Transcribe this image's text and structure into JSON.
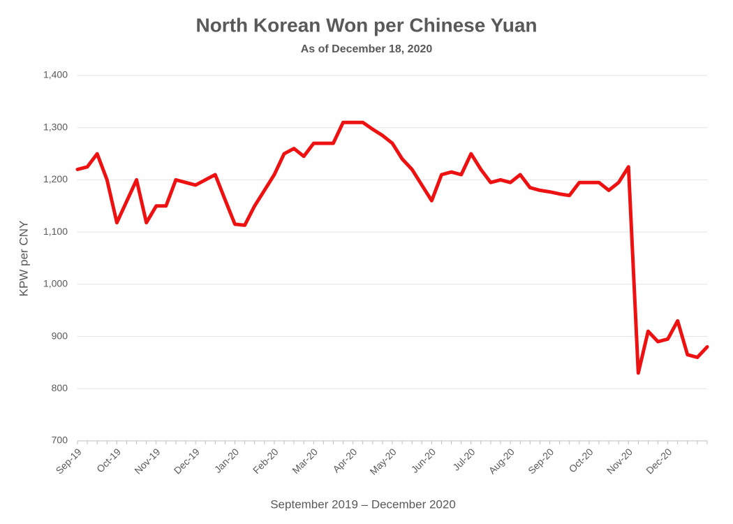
{
  "chart_data": {
    "type": "line",
    "title": "North Korean Won per Chinese Yuan",
    "subtitle": "As of December 18, 2020",
    "y_label": "KPW per CNY",
    "x_label": "September 2019 – December 2020",
    "categories": [
      "Sep-19",
      null,
      null,
      null,
      "Oct-19",
      null,
      null,
      null,
      "Nov-19",
      null,
      null,
      null,
      "Dec-19",
      null,
      null,
      null,
      "Jan-20",
      null,
      null,
      null,
      "Feb-20",
      null,
      null,
      null,
      "Mar-20",
      null,
      null,
      null,
      "Apr-20",
      null,
      null,
      null,
      "May-20",
      null,
      null,
      null,
      "Jun-20",
      null,
      null,
      null,
      "Jul-20",
      null,
      null,
      null,
      "Aug-20",
      null,
      null,
      null,
      "Sep-20",
      null,
      null,
      null,
      "Oct-20",
      null,
      null,
      null,
      "Nov-20",
      null,
      null,
      null,
      "Dec-20",
      null,
      null,
      null,
      null
    ],
    "values": [
      1220,
      1225,
      1250,
      1200,
      1118,
      1159,
      1200,
      1118,
      1150,
      1150,
      1200,
      1195,
      1190,
      1200,
      1210,
      1162,
      1115,
      1113,
      1150,
      1180,
      1210,
      1250,
      1260,
      1245,
      1270,
      1270,
      1270,
      1310,
      1310,
      1310,
      1297,
      1285,
      1270,
      1240,
      1220,
      1190,
      1160,
      1210,
      1215,
      1210,
      1250,
      1220,
      1195,
      1200,
      1195,
      1210,
      1185,
      1180,
      1177,
      1173,
      1170,
      1195,
      1195,
      1195,
      1180,
      1195,
      1225,
      830,
      910,
      890,
      895,
      930,
      865,
      860,
      880
    ],
    "color": "#ee1111",
    "ylim": [
      700,
      1400
    ],
    "yticks": [
      {
        "value": 700,
        "label": "700"
      },
      {
        "value": 800,
        "label": "800"
      },
      {
        "value": 900,
        "label": "900"
      },
      {
        "value": 1000,
        "label": "1,000"
      },
      {
        "value": 1100,
        "label": "1,100"
      },
      {
        "value": 1200,
        "label": "1,200"
      },
      {
        "value": 1300,
        "label": "1,300"
      },
      {
        "value": 1400,
        "label": "1,400"
      }
    ],
    "grid": true
  }
}
